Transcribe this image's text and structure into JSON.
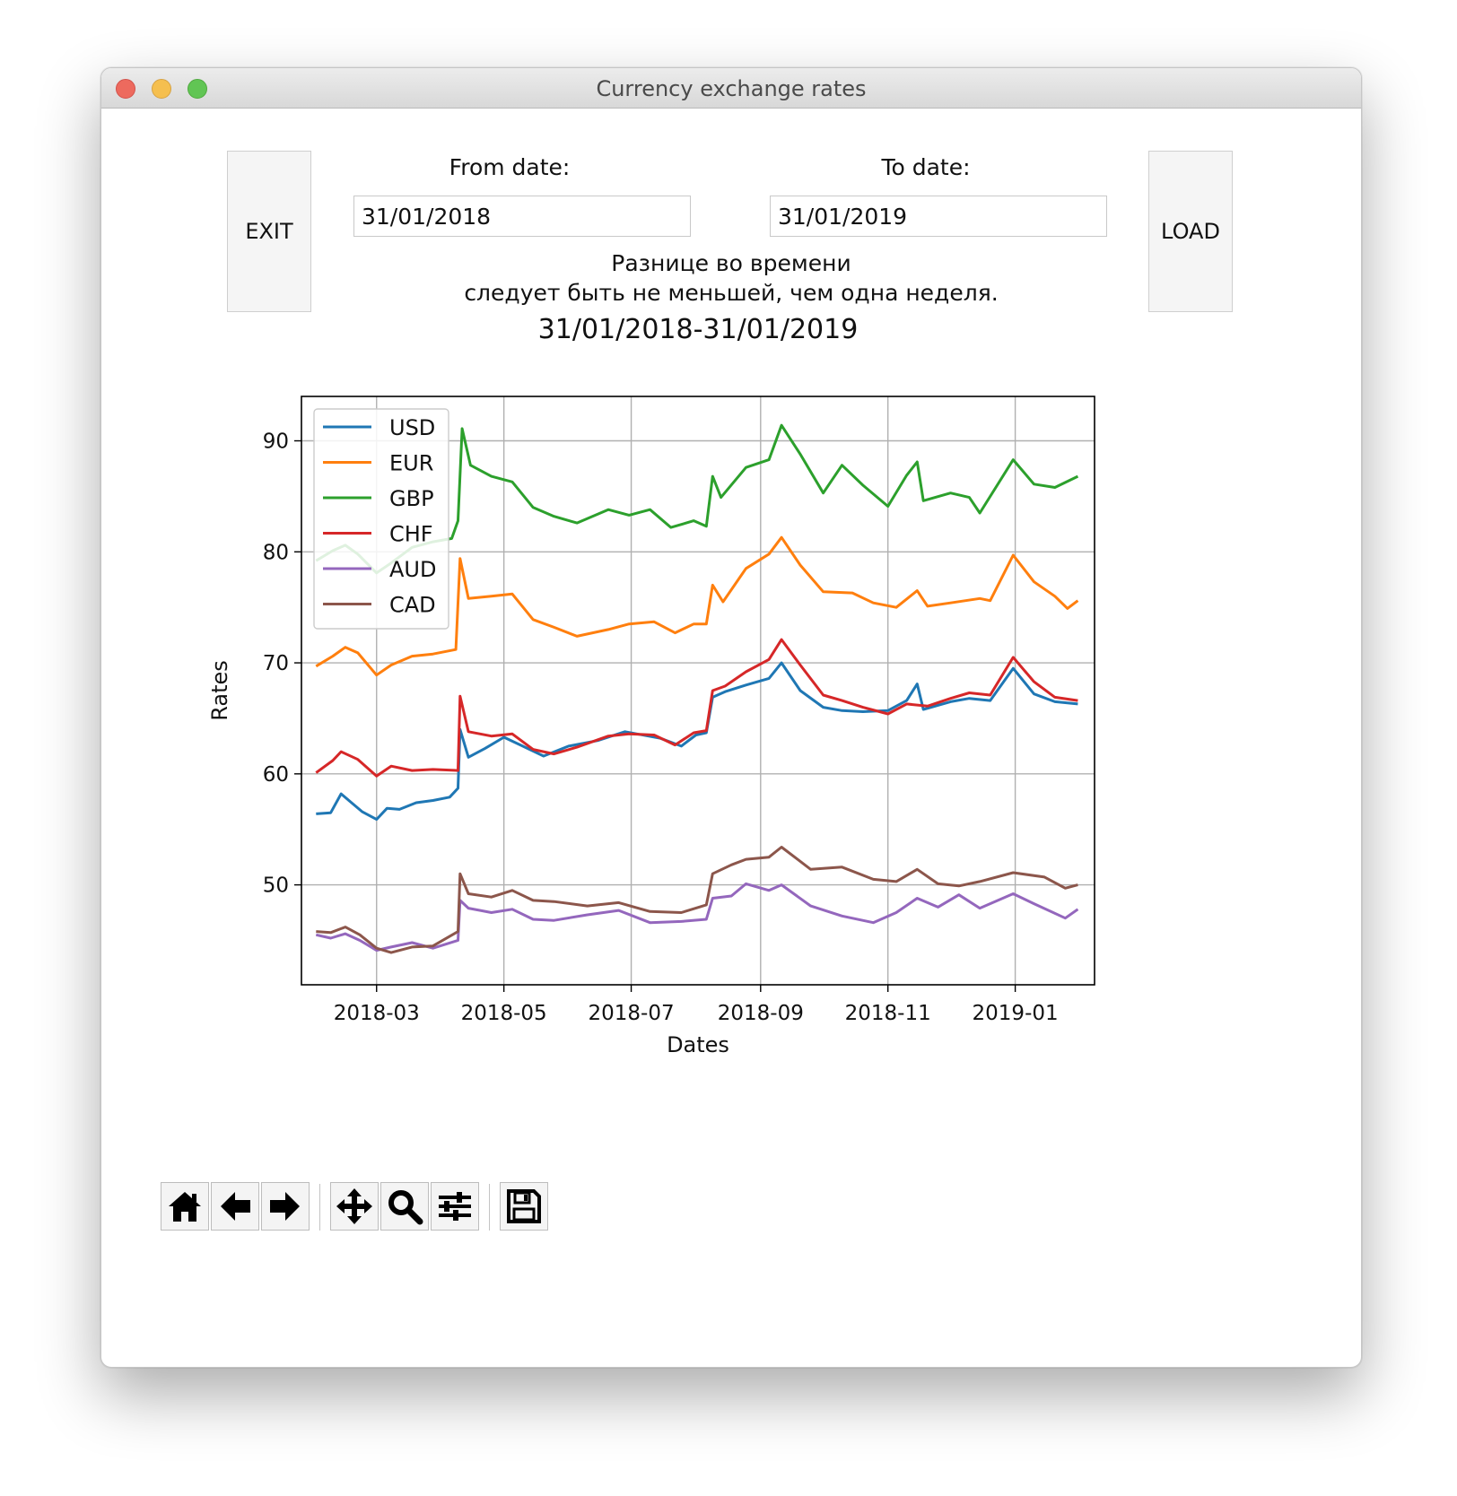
{
  "window": {
    "title": "Currency exchange rates"
  },
  "controls": {
    "exit_label": "EXIT",
    "load_label": "LOAD",
    "from_label": "From date:",
    "to_label": "To date:",
    "from_value": "31/01/2018",
    "to_value": "31/01/2019",
    "note_line1": "Разнице во времени",
    "note_line2": "следует быть не меньшей, чем одна неделя."
  },
  "toolbar": {
    "buttons": [
      "home-icon",
      "back-arrow-icon",
      "forward-arrow-icon",
      "pan-move-icon",
      "zoom-magnifier-icon",
      "configure-subplots-icon",
      "save-floppy-icon"
    ]
  },
  "chart_data": {
    "type": "line",
    "title": "31/01/2018-31/01/2019",
    "xlabel": "Dates",
    "ylabel": "Rates",
    "xlim": [
      "2018-01-24",
      "2019-02-08"
    ],
    "ylim": [
      41,
      94
    ],
    "xticks": [
      "2018-03",
      "2018-05",
      "2018-07",
      "2018-09",
      "2018-11",
      "2019-01"
    ],
    "yticks": [
      50,
      60,
      70,
      80,
      90
    ],
    "grid": true,
    "legend_position": "top-left",
    "series": [
      {
        "name": "USD",
        "color": "#1f77b4",
        "points": [
          [
            "2018-01-31",
            56.4
          ],
          [
            "2018-02-07",
            56.5
          ],
          [
            "2018-02-12",
            58.2
          ],
          [
            "2018-02-17",
            57.4
          ],
          [
            "2018-02-22",
            56.6
          ],
          [
            "2018-03-01",
            55.9
          ],
          [
            "2018-03-06",
            56.9
          ],
          [
            "2018-03-12",
            56.8
          ],
          [
            "2018-03-20",
            57.4
          ],
          [
            "2018-03-28",
            57.6
          ],
          [
            "2018-04-05",
            57.9
          ],
          [
            "2018-04-09",
            58.7
          ],
          [
            "2018-04-10",
            64.0
          ],
          [
            "2018-04-14",
            61.5
          ],
          [
            "2018-04-22",
            62.3
          ],
          [
            "2018-05-01",
            63.3
          ],
          [
            "2018-05-10",
            62.5
          ],
          [
            "2018-05-20",
            61.6
          ],
          [
            "2018-06-01",
            62.5
          ],
          [
            "2018-06-15",
            63.0
          ],
          [
            "2018-06-28",
            63.8
          ],
          [
            "2018-07-15",
            63.2
          ],
          [
            "2018-07-25",
            62.5
          ],
          [
            "2018-08-01",
            63.5
          ],
          [
            "2018-08-06",
            63.7
          ],
          [
            "2018-08-09",
            66.9
          ],
          [
            "2018-08-15",
            67.4
          ],
          [
            "2018-08-25",
            68.0
          ],
          [
            "2018-09-05",
            68.6
          ],
          [
            "2018-09-11",
            70.0
          ],
          [
            "2018-09-20",
            67.5
          ],
          [
            "2018-10-01",
            66.0
          ],
          [
            "2018-10-10",
            65.7
          ],
          [
            "2018-10-20",
            65.6
          ],
          [
            "2018-11-01",
            65.7
          ],
          [
            "2018-11-10",
            66.6
          ],
          [
            "2018-11-15",
            68.1
          ],
          [
            "2018-11-18",
            65.8
          ],
          [
            "2018-12-01",
            66.5
          ],
          [
            "2018-12-10",
            66.8
          ],
          [
            "2018-12-20",
            66.6
          ],
          [
            "2018-12-31",
            69.5
          ],
          [
            "2019-01-10",
            67.2
          ],
          [
            "2019-01-20",
            66.5
          ],
          [
            "2019-01-31",
            66.3
          ]
        ]
      },
      {
        "name": "EUR",
        "color": "#ff7f0e",
        "points": [
          [
            "2018-01-31",
            69.7
          ],
          [
            "2018-02-08",
            70.6
          ],
          [
            "2018-02-14",
            71.4
          ],
          [
            "2018-02-20",
            70.9
          ],
          [
            "2018-03-01",
            68.9
          ],
          [
            "2018-03-08",
            69.8
          ],
          [
            "2018-03-18",
            70.6
          ],
          [
            "2018-03-28",
            70.8
          ],
          [
            "2018-04-08",
            71.2
          ],
          [
            "2018-04-10",
            79.4
          ],
          [
            "2018-04-14",
            75.8
          ],
          [
            "2018-04-25",
            76.0
          ],
          [
            "2018-05-05",
            76.2
          ],
          [
            "2018-05-15",
            73.9
          ],
          [
            "2018-05-25",
            73.2
          ],
          [
            "2018-06-05",
            72.4
          ],
          [
            "2018-06-20",
            73.0
          ],
          [
            "2018-06-30",
            73.5
          ],
          [
            "2018-07-12",
            73.7
          ],
          [
            "2018-07-22",
            72.7
          ],
          [
            "2018-07-31",
            73.5
          ],
          [
            "2018-08-06",
            73.5
          ],
          [
            "2018-08-09",
            77.0
          ],
          [
            "2018-08-14",
            75.5
          ],
          [
            "2018-08-25",
            78.5
          ],
          [
            "2018-09-05",
            79.8
          ],
          [
            "2018-09-11",
            81.3
          ],
          [
            "2018-09-20",
            78.8
          ],
          [
            "2018-10-01",
            76.4
          ],
          [
            "2018-10-15",
            76.3
          ],
          [
            "2018-10-25",
            75.4
          ],
          [
            "2018-11-05",
            75.0
          ],
          [
            "2018-11-15",
            76.5
          ],
          [
            "2018-11-20",
            75.1
          ],
          [
            "2018-12-01",
            75.4
          ],
          [
            "2018-12-15",
            75.8
          ],
          [
            "2018-12-20",
            75.6
          ],
          [
            "2018-12-31",
            79.7
          ],
          [
            "2019-01-10",
            77.3
          ],
          [
            "2019-01-20",
            76.0
          ],
          [
            "2019-01-26",
            74.9
          ],
          [
            "2019-01-31",
            75.6
          ]
        ]
      },
      {
        "name": "GBP",
        "color": "#2ca02c",
        "points": [
          [
            "2018-01-31",
            79.2
          ],
          [
            "2018-02-08",
            80.1
          ],
          [
            "2018-02-14",
            80.6
          ],
          [
            "2018-02-20",
            79.8
          ],
          [
            "2018-03-01",
            78.1
          ],
          [
            "2018-03-08",
            79.0
          ],
          [
            "2018-03-18",
            80.4
          ],
          [
            "2018-03-28",
            80.9
          ],
          [
            "2018-04-06",
            81.2
          ],
          [
            "2018-04-09",
            82.8
          ],
          [
            "2018-04-11",
            91.1
          ],
          [
            "2018-04-15",
            87.8
          ],
          [
            "2018-04-25",
            86.8
          ],
          [
            "2018-05-05",
            86.3
          ],
          [
            "2018-05-15",
            84.0
          ],
          [
            "2018-05-25",
            83.2
          ],
          [
            "2018-06-05",
            82.6
          ],
          [
            "2018-06-20",
            83.8
          ],
          [
            "2018-06-30",
            83.3
          ],
          [
            "2018-07-10",
            83.8
          ],
          [
            "2018-07-20",
            82.2
          ],
          [
            "2018-07-31",
            82.8
          ],
          [
            "2018-08-06",
            82.3
          ],
          [
            "2018-08-09",
            86.8
          ],
          [
            "2018-08-13",
            84.9
          ],
          [
            "2018-08-25",
            87.6
          ],
          [
            "2018-09-05",
            88.3
          ],
          [
            "2018-09-11",
            91.4
          ],
          [
            "2018-09-20",
            88.8
          ],
          [
            "2018-10-01",
            85.3
          ],
          [
            "2018-10-10",
            87.8
          ],
          [
            "2018-10-20",
            86.0
          ],
          [
            "2018-11-01",
            84.1
          ],
          [
            "2018-11-10",
            86.9
          ],
          [
            "2018-11-15",
            88.1
          ],
          [
            "2018-11-18",
            84.6
          ],
          [
            "2018-12-01",
            85.3
          ],
          [
            "2018-12-10",
            84.9
          ],
          [
            "2018-12-15",
            83.5
          ],
          [
            "2018-12-31",
            88.3
          ],
          [
            "2019-01-10",
            86.1
          ],
          [
            "2019-01-20",
            85.8
          ],
          [
            "2019-01-31",
            86.8
          ]
        ]
      },
      {
        "name": "CHF",
        "color": "#d62728",
        "points": [
          [
            "2018-01-31",
            60.1
          ],
          [
            "2018-02-08",
            61.2
          ],
          [
            "2018-02-12",
            62.0
          ],
          [
            "2018-02-20",
            61.3
          ],
          [
            "2018-03-01",
            59.8
          ],
          [
            "2018-03-08",
            60.7
          ],
          [
            "2018-03-18",
            60.3
          ],
          [
            "2018-03-28",
            60.4
          ],
          [
            "2018-04-09",
            60.3
          ],
          [
            "2018-04-10",
            67.0
          ],
          [
            "2018-04-14",
            63.8
          ],
          [
            "2018-04-25",
            63.4
          ],
          [
            "2018-05-05",
            63.6
          ],
          [
            "2018-05-15",
            62.2
          ],
          [
            "2018-05-25",
            61.8
          ],
          [
            "2018-06-05",
            62.4
          ],
          [
            "2018-06-20",
            63.4
          ],
          [
            "2018-06-30",
            63.6
          ],
          [
            "2018-07-12",
            63.5
          ],
          [
            "2018-07-22",
            62.6
          ],
          [
            "2018-07-31",
            63.7
          ],
          [
            "2018-08-06",
            63.9
          ],
          [
            "2018-08-09",
            67.5
          ],
          [
            "2018-08-15",
            67.9
          ],
          [
            "2018-08-25",
            69.2
          ],
          [
            "2018-09-05",
            70.3
          ],
          [
            "2018-09-11",
            72.1
          ],
          [
            "2018-09-20",
            69.8
          ],
          [
            "2018-10-01",
            67.1
          ],
          [
            "2018-10-10",
            66.6
          ],
          [
            "2018-10-20",
            66.0
          ],
          [
            "2018-11-01",
            65.4
          ],
          [
            "2018-11-10",
            66.3
          ],
          [
            "2018-11-20",
            66.1
          ],
          [
            "2018-12-01",
            66.8
          ],
          [
            "2018-12-10",
            67.3
          ],
          [
            "2018-12-20",
            67.1
          ],
          [
            "2018-12-31",
            70.5
          ],
          [
            "2019-01-10",
            68.3
          ],
          [
            "2019-01-20",
            66.9
          ],
          [
            "2019-01-31",
            66.6
          ]
        ]
      },
      {
        "name": "AUD",
        "color": "#9467bd",
        "points": [
          [
            "2018-01-31",
            45.5
          ],
          [
            "2018-02-07",
            45.2
          ],
          [
            "2018-02-14",
            45.6
          ],
          [
            "2018-02-21",
            45.0
          ],
          [
            "2018-03-01",
            44.1
          ],
          [
            "2018-03-08",
            44.4
          ],
          [
            "2018-03-18",
            44.8
          ],
          [
            "2018-03-28",
            44.3
          ],
          [
            "2018-04-09",
            45.0
          ],
          [
            "2018-04-10",
            48.6
          ],
          [
            "2018-04-14",
            47.9
          ],
          [
            "2018-04-25",
            47.5
          ],
          [
            "2018-05-05",
            47.8
          ],
          [
            "2018-05-15",
            46.9
          ],
          [
            "2018-05-25",
            46.8
          ],
          [
            "2018-06-10",
            47.3
          ],
          [
            "2018-06-25",
            47.7
          ],
          [
            "2018-07-10",
            46.6
          ],
          [
            "2018-07-25",
            46.7
          ],
          [
            "2018-08-06",
            46.9
          ],
          [
            "2018-08-09",
            48.8
          ],
          [
            "2018-08-18",
            49.0
          ],
          [
            "2018-08-25",
            50.1
          ],
          [
            "2018-09-05",
            49.5
          ],
          [
            "2018-09-11",
            50.0
          ],
          [
            "2018-09-25",
            48.1
          ],
          [
            "2018-10-10",
            47.2
          ],
          [
            "2018-10-25",
            46.6
          ],
          [
            "2018-11-05",
            47.5
          ],
          [
            "2018-11-15",
            48.8
          ],
          [
            "2018-11-25",
            48.0
          ],
          [
            "2018-12-05",
            49.1
          ],
          [
            "2018-12-15",
            47.9
          ],
          [
            "2018-12-31",
            49.2
          ],
          [
            "2019-01-10",
            48.3
          ],
          [
            "2019-01-25",
            47.0
          ],
          [
            "2019-01-31",
            47.8
          ]
        ]
      },
      {
        "name": "CAD",
        "color": "#8c564b",
        "points": [
          [
            "2018-01-31",
            45.8
          ],
          [
            "2018-02-07",
            45.7
          ],
          [
            "2018-02-14",
            46.2
          ],
          [
            "2018-02-21",
            45.5
          ],
          [
            "2018-03-01",
            44.3
          ],
          [
            "2018-03-08",
            43.9
          ],
          [
            "2018-03-18",
            44.4
          ],
          [
            "2018-03-28",
            44.5
          ],
          [
            "2018-04-09",
            45.8
          ],
          [
            "2018-04-10",
            51.0
          ],
          [
            "2018-04-14",
            49.2
          ],
          [
            "2018-04-25",
            48.9
          ],
          [
            "2018-05-05",
            49.5
          ],
          [
            "2018-05-15",
            48.6
          ],
          [
            "2018-05-25",
            48.5
          ],
          [
            "2018-06-10",
            48.1
          ],
          [
            "2018-06-25",
            48.4
          ],
          [
            "2018-07-10",
            47.6
          ],
          [
            "2018-07-25",
            47.5
          ],
          [
            "2018-08-06",
            48.2
          ],
          [
            "2018-08-09",
            51.0
          ],
          [
            "2018-08-18",
            51.8
          ],
          [
            "2018-08-25",
            52.3
          ],
          [
            "2018-09-05",
            52.5
          ],
          [
            "2018-09-11",
            53.4
          ],
          [
            "2018-09-25",
            51.4
          ],
          [
            "2018-10-10",
            51.6
          ],
          [
            "2018-10-25",
            50.5
          ],
          [
            "2018-11-05",
            50.3
          ],
          [
            "2018-11-15",
            51.4
          ],
          [
            "2018-11-25",
            50.1
          ],
          [
            "2018-12-05",
            49.9
          ],
          [
            "2018-12-15",
            50.3
          ],
          [
            "2018-12-31",
            51.1
          ],
          [
            "2019-01-15",
            50.7
          ],
          [
            "2019-01-25",
            49.7
          ],
          [
            "2019-01-31",
            50.0
          ]
        ]
      }
    ]
  }
}
